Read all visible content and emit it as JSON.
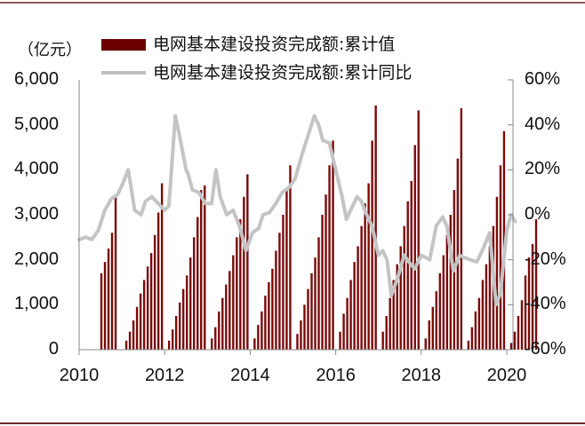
{
  "unit_label": "（亿元）",
  "legend": [
    {
      "label": "电网基本建设投资完成额:累计值",
      "type": "bar",
      "color": "#6b0000"
    },
    {
      "label": "电网基本建设投资完成额:累计同比",
      "type": "line",
      "color": "#bfbfbf"
    }
  ],
  "chart_data": {
    "type": "bar",
    "title": "",
    "xlabel": "",
    "ylabel": "亿元",
    "y2label": "%",
    "ylim": [
      0,
      6000
    ],
    "y2lim": [
      -60,
      60
    ],
    "yticks": [
      "0",
      "1,000",
      "2,000",
      "3,000",
      "4,000",
      "5,000",
      "6,000"
    ],
    "y2ticks": [
      "-60%",
      "-40%",
      "-20%",
      "0%",
      "20%",
      "40%",
      "60%"
    ],
    "xticks": [
      "2010",
      "2012",
      "2014",
      "2016",
      "2018",
      "2020"
    ],
    "grid": false,
    "legend_position": "top",
    "x_start": 2010.0,
    "x_end": 2020.2,
    "series": [
      {
        "name": "电网基本建设投资完成额:累计值",
        "type": "bar",
        "axis": "left",
        "years": [
          {
            "year": 2010,
            "values": [
              1700,
              1950,
              2250,
              2600,
              3450
            ]
          },
          {
            "year": 2011,
            "values": [
              200,
              400,
              650,
              950,
              1250,
              1550,
              1850,
              2150,
              2550,
              3050,
              3700
            ]
          },
          {
            "year": 2012,
            "values": [
              200,
              450,
              750,
              1050,
              1350,
              1650,
              2050,
              2500,
              2950,
              3550,
              3650
            ]
          },
          {
            "year": 2013,
            "values": [
              250,
              500,
              850,
              1150,
              1450,
              1750,
              2100,
              2500,
              2900,
              3400,
              3900
            ]
          },
          {
            "year": 2014,
            "values": [
              250,
              550,
              850,
              1200,
              1500,
              1800,
              2200,
              2600,
              3000,
              3550,
              4100
            ]
          },
          {
            "year": 2015,
            "values": [
              350,
              650,
              1000,
              1350,
              1700,
              2050,
              2500,
              3000,
              3450,
              4100,
              4650
            ]
          },
          {
            "year": 2016,
            "values": [
              400,
              800,
              1150,
              1550,
              1950,
              2300,
              2750,
              3250,
              3700,
              4650,
              5430
            ]
          },
          {
            "year": 2017,
            "values": [
              400,
              750,
              1150,
              1550,
              1900,
              2300,
              2750,
              3300,
              3750,
              4550,
              5320
            ]
          },
          {
            "year": 2018,
            "values": [
              250,
              650,
              950,
              1300,
              1700,
              2100,
              2550,
              3000,
              3550,
              4250,
              5370
            ]
          },
          {
            "year": 2019,
            "values": [
              200,
              500,
              850,
              1150,
              1550,
              1900,
              2300,
              2750,
              3400,
              4100,
              4860
            ]
          },
          {
            "year": 2020,
            "values": [
              150,
              400,
              750,
              1100,
              1650,
              2050,
              2350,
              2900
            ]
          }
        ]
      },
      {
        "name": "电网基本建设投资完成额:累计同比",
        "type": "line",
        "axis": "right",
        "x": [
          2010.0,
          2010.15,
          2010.3,
          2010.45,
          2010.6,
          2010.75,
          2010.9,
          2011.0,
          2011.15,
          2011.3,
          2011.45,
          2011.55,
          2011.7,
          2011.85,
          2012.0,
          2012.1,
          2012.25,
          2012.35,
          2012.5,
          2012.55,
          2012.65,
          2012.8,
          2012.95,
          2013.1,
          2013.2,
          2013.3,
          2013.45,
          2013.6,
          2013.75,
          2013.9,
          2014.05,
          2014.2,
          2014.3,
          2014.45,
          2014.6,
          2014.75,
          2014.9,
          2015.05,
          2015.2,
          2015.35,
          2015.5,
          2015.6,
          2015.7,
          2015.85,
          2016.0,
          2016.15,
          2016.25,
          2016.35,
          2016.5,
          2016.6,
          2016.7,
          2016.85,
          2017.0,
          2017.1,
          2017.2,
          2017.3,
          2017.45,
          2017.6,
          2017.75,
          2017.85,
          2018.0,
          2018.1,
          2018.2,
          2018.35,
          2018.5,
          2018.6,
          2018.75,
          2018.9,
          2019.0,
          2019.15,
          2019.3,
          2019.45,
          2019.6,
          2019.75,
          2019.85,
          2020.0,
          2020.1,
          2020.2
        ],
        "values": [
          -11,
          -10,
          -11,
          -7,
          2,
          7,
          9,
          13,
          20,
          2,
          0,
          6,
          8,
          5,
          2,
          4,
          44,
          35,
          20,
          18,
          11,
          10,
          5,
          5,
          20,
          8,
          0,
          2,
          -5,
          -16,
          -8,
          -6,
          0,
          1,
          5,
          10,
          12,
          16,
          26,
          35,
          44,
          40,
          33,
          32,
          20,
          8,
          -2,
          2,
          8,
          6,
          1,
          -5,
          -18,
          -16,
          -20,
          -36,
          -28,
          -18,
          -22,
          -24,
          -18,
          -19,
          -20,
          -5,
          -1,
          -5,
          -25,
          -18,
          -19,
          -20,
          -21,
          -15,
          -8,
          -40,
          -35,
          -7,
          0,
          -3
        ]
      }
    ]
  }
}
